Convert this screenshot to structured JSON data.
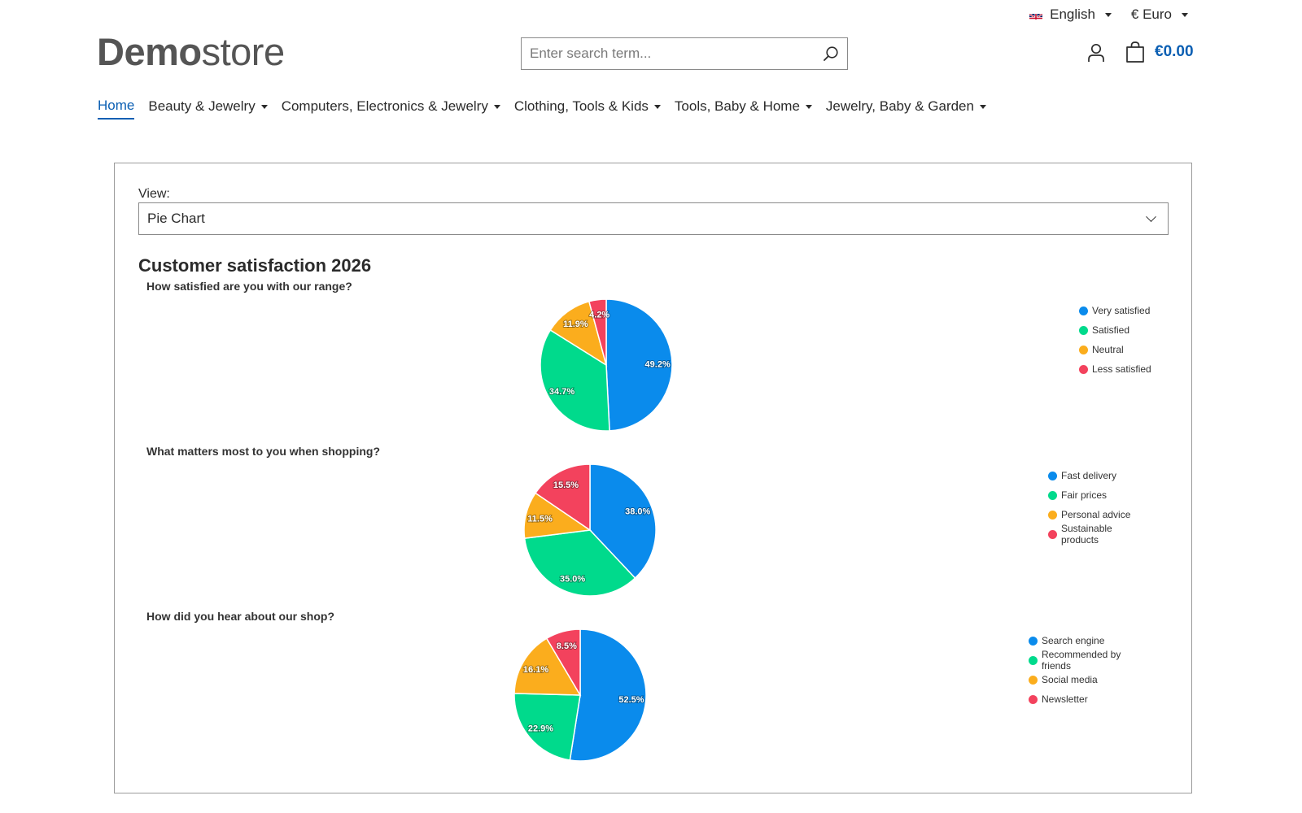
{
  "topbar": {
    "language": "English",
    "currency": "€ Euro"
  },
  "logo": {
    "bold": "Demo",
    "light": "store"
  },
  "search": {
    "placeholder": "Enter search term..."
  },
  "cart": {
    "amount": "€0.00"
  },
  "nav": [
    {
      "label": "Home",
      "active": true,
      "dropdown": false
    },
    {
      "label": "Beauty & Jewelry",
      "active": false,
      "dropdown": true
    },
    {
      "label": "Computers, Electronics & Jewelry",
      "active": false,
      "dropdown": true
    },
    {
      "label": "Clothing, Tools & Kids",
      "active": false,
      "dropdown": true
    },
    {
      "label": "Tools, Baby & Home",
      "active": false,
      "dropdown": true
    },
    {
      "label": "Jewelry, Baby & Garden",
      "active": false,
      "dropdown": true
    }
  ],
  "view": {
    "label": "View:",
    "selected": "Pie Chart"
  },
  "section_title": "Customer satisfaction 2026",
  "colors": {
    "blue": "#0a8bec",
    "green": "#00da8c",
    "orange": "#fbad1d",
    "red": "#f3425d",
    "brand": "#0b5fb3"
  },
  "chart_data": [
    {
      "type": "pie",
      "title": "How satisfied are you with our range?",
      "categories": [
        "Very satisfied",
        "Satisfied",
        "Neutral",
        "Less satisfied"
      ],
      "values": [
        49.2,
        34.7,
        11.9,
        4.2
      ],
      "labels": [
        "49.2%",
        "34.7%",
        "11.9%",
        "4.2%"
      ],
      "legend": "top-right"
    },
    {
      "type": "pie",
      "title": "What matters most to you when shopping?",
      "categories": [
        "Fast delivery",
        "Fair prices",
        "Personal advice",
        "Sustainable products"
      ],
      "values": [
        38.0,
        35.0,
        11.5,
        15.5
      ],
      "labels": [
        "38.0%",
        "35.0%",
        "11.5%",
        "15.5%"
      ],
      "legend": "top-right"
    },
    {
      "type": "pie",
      "title": "How did you hear about our shop?",
      "categories": [
        "Search engine",
        "Recommended by friends",
        "Social media",
        "Newsletter"
      ],
      "values": [
        52.5,
        22.9,
        16.1,
        8.5
      ],
      "labels": [
        "52.5%",
        "22.9%",
        "16.1%",
        "8.5%"
      ],
      "legend": "top-right"
    }
  ]
}
